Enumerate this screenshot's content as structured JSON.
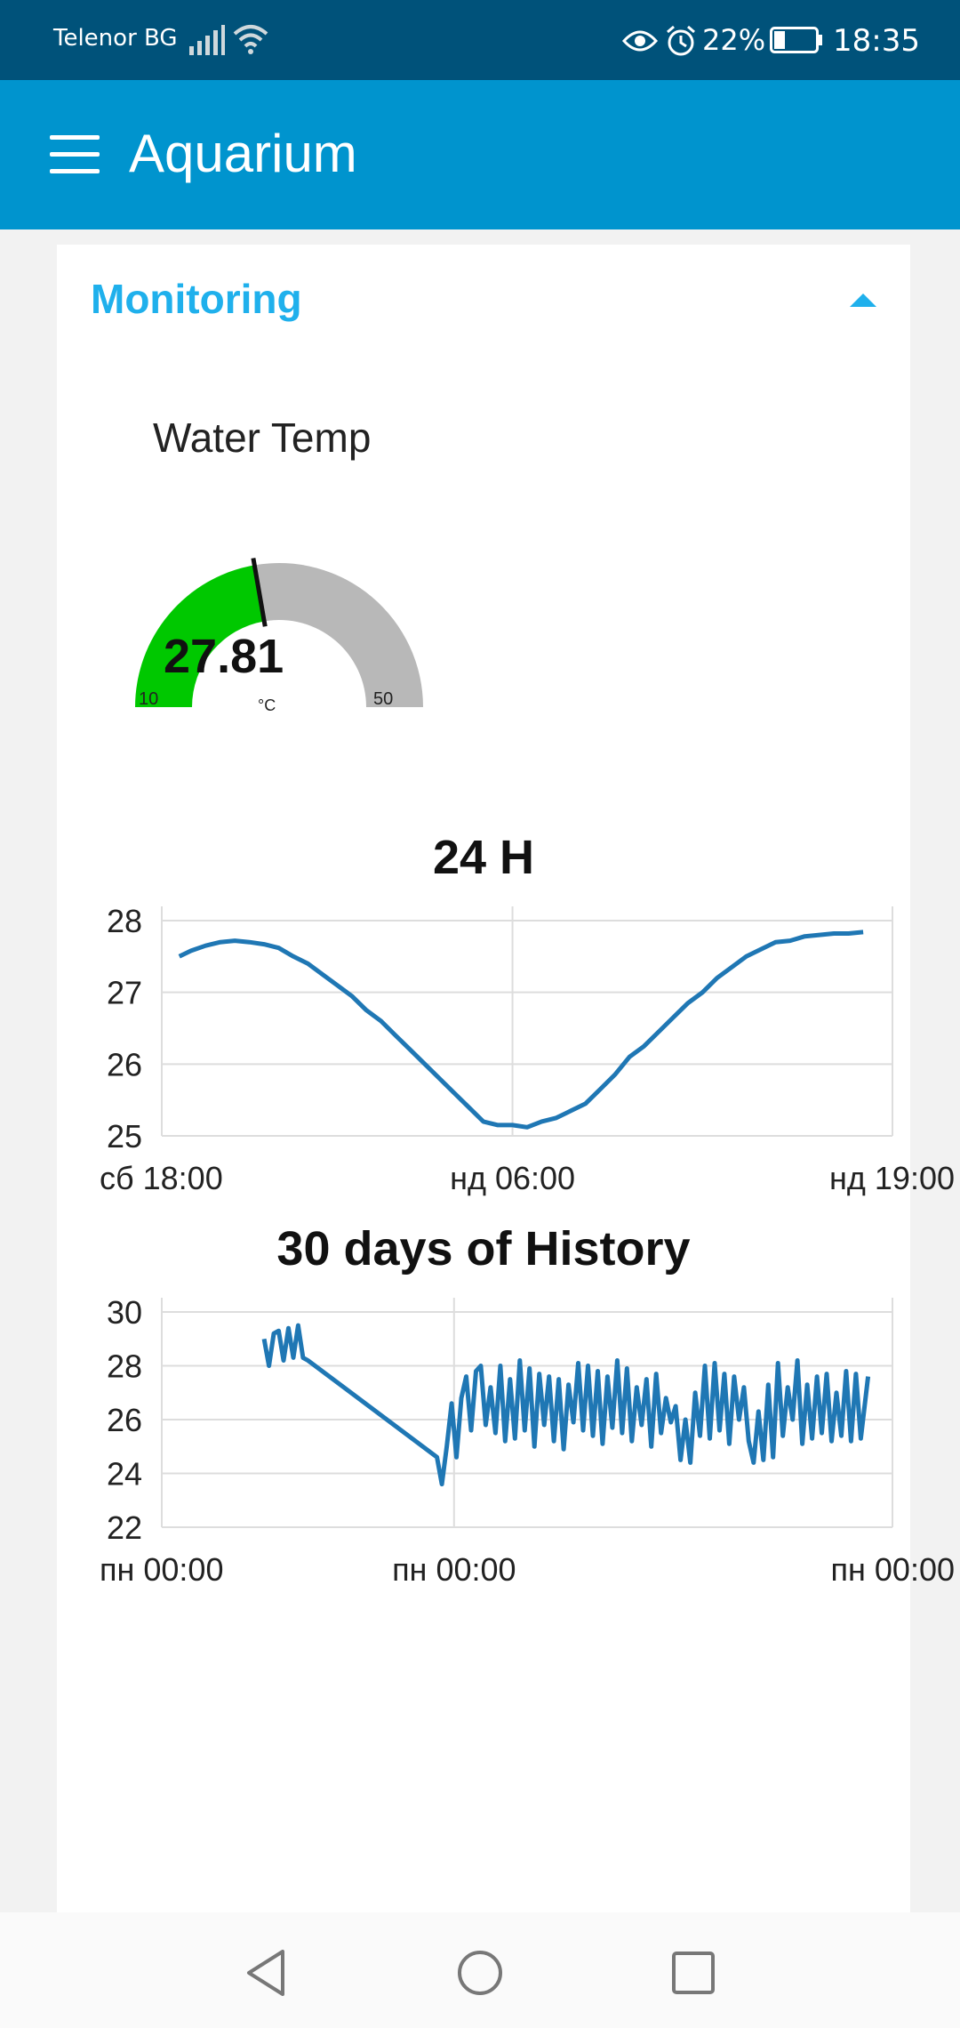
{
  "status_bar": {
    "carrier": "Telenor BG",
    "battery_percent": "22%",
    "time": "18:35",
    "icons": [
      "signal-icon",
      "wifi-icon",
      "eye-icon",
      "alarm-icon",
      "battery-icon"
    ]
  },
  "app_bar": {
    "title": "Aquarium",
    "menu_icon": "hamburger-menu-icon",
    "color": "#0094ce"
  },
  "group": {
    "title": "Monitoring",
    "collapse_icon": "chevron-up-icon",
    "accent": "#1fb0ec"
  },
  "gauge": {
    "title": "Water Temp",
    "value": "27.81",
    "value_num": 27.81,
    "unit": "°C",
    "min": "10",
    "max": "50",
    "min_num": 10,
    "max_num": 50,
    "fill_color": "#00c800",
    "track_color": "#b8b8b8"
  },
  "charts": [
    {
      "title": "24 H",
      "chart_data": {
        "type": "line",
        "color": "#1f77b4",
        "ylim": [
          25,
          28
        ],
        "yticks": [
          25,
          26,
          27,
          28
        ],
        "xlim": [
          0,
          25
        ],
        "xticks": [
          {
            "label": "сб 18:00",
            "value": 0
          },
          {
            "label": "нд 06:00",
            "value": 12
          },
          {
            "label": "нд 19:00",
            "value": 25
          }
        ],
        "x": [
          0.6,
          1,
          1.5,
          2,
          2.5,
          3,
          3.5,
          4,
          4.5,
          5,
          5.5,
          6,
          6.5,
          7,
          7.5,
          8,
          8.5,
          9,
          9.5,
          10,
          10.5,
          11,
          11.5,
          12,
          12.5,
          13,
          13.5,
          14,
          14.5,
          15,
          15.5,
          16,
          16.5,
          17,
          17.5,
          18,
          18.5,
          19,
          19.5,
          20,
          20.5,
          21,
          21.5,
          22,
          22.5,
          23,
          23.5,
          24
        ],
        "values": [
          27.5,
          27.58,
          27.65,
          27.7,
          27.72,
          27.7,
          27.67,
          27.62,
          27.5,
          27.4,
          27.25,
          27.1,
          26.95,
          26.75,
          26.6,
          26.4,
          26.2,
          26.0,
          25.8,
          25.6,
          25.4,
          25.2,
          25.15,
          25.15,
          25.12,
          25.2,
          25.25,
          25.35,
          25.45,
          25.65,
          25.85,
          26.1,
          26.25,
          26.45,
          26.65,
          26.85,
          27.0,
          27.2,
          27.35,
          27.5,
          27.6,
          27.7,
          27.72,
          27.78,
          27.8,
          27.82,
          27.82,
          27.84
        ]
      }
    },
    {
      "title": "30 days of History",
      "chart_data": {
        "type": "line",
        "color": "#1f77b4",
        "ylim": [
          22,
          30
        ],
        "yticks": [
          22,
          24,
          26,
          28,
          30
        ],
        "xlim": [
          0,
          30
        ],
        "xticks": [
          {
            "label": "пн 00:00",
            "value": 0
          },
          {
            "label": "пн 00:00",
            "value": 12
          },
          {
            "label": "пн 00:00",
            "value": 30
          }
        ],
        "x": [
          4.2,
          4.4,
          4.6,
          4.8,
          5.0,
          5.2,
          5.4,
          5.6,
          5.8,
          6.0,
          11.3,
          11.5,
          11.7,
          11.9,
          12.1,
          12.3,
          12.5,
          12.7,
          12.9,
          13.1,
          13.3,
          13.5,
          13.7,
          13.9,
          14.1,
          14.3,
          14.5,
          14.7,
          14.9,
          15.1,
          15.3,
          15.5,
          15.7,
          15.9,
          16.1,
          16.3,
          16.5,
          16.7,
          16.9,
          17.1,
          17.3,
          17.5,
          17.7,
          17.9,
          18.1,
          18.3,
          18.5,
          18.7,
          18.9,
          19.1,
          19.3,
          19.5,
          19.7,
          19.9,
          20.1,
          20.3,
          20.5,
          20.7,
          20.9,
          21.1,
          21.3,
          21.5,
          21.7,
          21.9,
          22.1,
          22.3,
          22.5,
          22.7,
          22.9,
          23.1,
          23.3,
          23.5,
          23.7,
          23.9,
          24.1,
          24.3,
          24.5,
          24.7,
          24.9,
          25.1,
          25.3,
          25.5,
          25.7,
          25.9,
          26.1,
          26.3,
          26.5,
          26.7,
          26.9,
          27.1,
          27.3,
          27.5,
          27.7,
          27.9,
          28.1,
          28.3,
          28.5,
          28.7,
          29.0
        ],
        "values": [
          29.0,
          28.0,
          29.2,
          29.3,
          28.2,
          29.4,
          28.3,
          29.5,
          28.3,
          28.2,
          24.6,
          23.6,
          25.0,
          26.6,
          24.6,
          26.8,
          27.6,
          25.6,
          27.8,
          28.0,
          25.8,
          27.2,
          25.5,
          28.0,
          25.2,
          27.5,
          25.3,
          28.2,
          25.6,
          27.9,
          25.0,
          27.7,
          25.8,
          27.6,
          25.2,
          27.5,
          24.9,
          27.3,
          25.9,
          28.1,
          25.6,
          28.0,
          25.4,
          27.8,
          25.1,
          27.6,
          25.7,
          28.2,
          25.5,
          27.9,
          25.2,
          27.2,
          25.8,
          27.5,
          25.0,
          27.7,
          25.5,
          26.8,
          25.9,
          26.5,
          24.5,
          26.0,
          24.4,
          27.0,
          25.4,
          28.0,
          25.3,
          28.1,
          25.6,
          27.7,
          25.1,
          27.6,
          26.0,
          27.2,
          25.2,
          24.4,
          26.3,
          24.5,
          27.3,
          24.6,
          28.1,
          25.4,
          27.2,
          26.0,
          28.2,
          25.1,
          27.3,
          25.3,
          27.6,
          25.5,
          27.7,
          25.2,
          27.0,
          25.4,
          27.8,
          25.2,
          27.7,
          25.3,
          27.6
        ]
      }
    }
  ],
  "nav_bar": {
    "icons": [
      "back-icon",
      "home-icon",
      "recents-icon"
    ]
  }
}
